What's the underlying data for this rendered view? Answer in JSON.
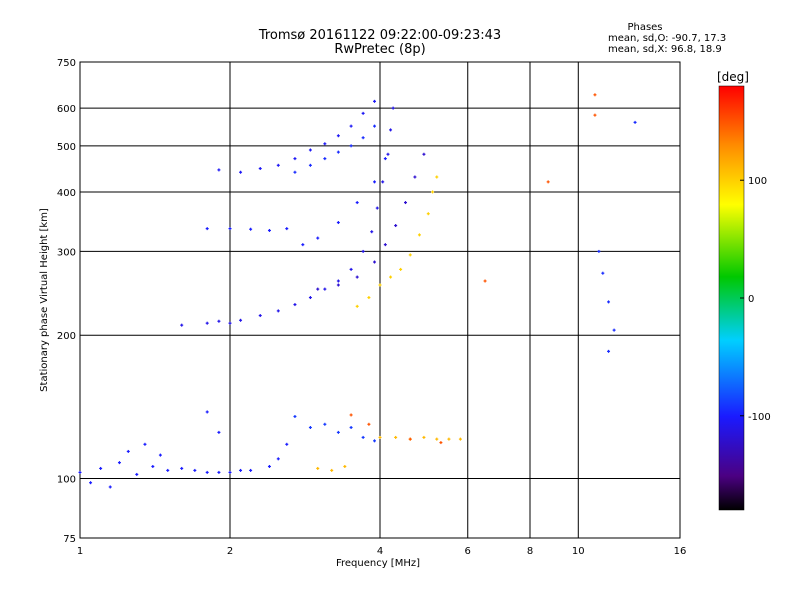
{
  "chart_data": {
    "type": "scatter",
    "title": "Tromsø 20161122 09:22:00-09:23:43",
    "subtitle": "RwPretec (8p)",
    "xlabel": "Frequency [MHz]",
    "ylabel": "Stationary phase Virtual Height [km]",
    "x_scale": "log",
    "y_scale": "log",
    "xlim": [
      1,
      16
    ],
    "ylim": [
      75,
      750
    ],
    "x_ticks": [
      1,
      2,
      4,
      6,
      8,
      10,
      16
    ],
    "y_ticks": [
      75,
      100,
      200,
      300,
      400,
      500,
      600,
      750
    ],
    "grid": true,
    "phase_stats": {
      "title": "Phases",
      "line_o": "mean, sd,O: -90.7, 17.3",
      "line_x": "mean, sd,X:  96.8, 18.9"
    },
    "colorbar": {
      "label": "[deg]",
      "range": [
        -180,
        180
      ],
      "ticks": [
        100,
        0,
        -100
      ],
      "tick_labels": [
        "100",
        "0",
        "-100"
      ]
    },
    "series": [
      {
        "phase": -100,
        "points": [
          [
            1.0,
            103
          ],
          [
            1.05,
            98
          ],
          [
            1.1,
            105
          ],
          [
            1.15,
            96
          ],
          [
            1.2,
            108
          ],
          [
            1.3,
            102
          ],
          [
            1.4,
            106
          ],
          [
            1.5,
            104
          ],
          [
            1.6,
            105
          ],
          [
            1.7,
            104
          ],
          [
            1.8,
            103
          ],
          [
            1.9,
            103
          ],
          [
            2.0,
            103
          ],
          [
            2.1,
            104
          ],
          [
            2.2,
            104
          ],
          [
            2.4,
            106
          ],
          [
            2.5,
            110
          ],
          [
            2.6,
            118
          ],
          [
            1.25,
            114
          ],
          [
            1.35,
            118
          ],
          [
            1.45,
            112
          ],
          [
            1.8,
            138
          ],
          [
            1.9,
            125
          ]
        ]
      },
      {
        "phase": -110,
        "points": [
          [
            1.6,
            210
          ],
          [
            1.8,
            212
          ],
          [
            1.9,
            214
          ],
          [
            2.0,
            212
          ],
          [
            2.1,
            215
          ],
          [
            2.3,
            220
          ],
          [
            2.5,
            225
          ],
          [
            2.7,
            232
          ],
          [
            2.9,
            240
          ],
          [
            3.1,
            250
          ],
          [
            3.3,
            260
          ],
          [
            3.5,
            275
          ],
          [
            3.7,
            300
          ],
          [
            3.85,
            330
          ],
          [
            3.95,
            370
          ],
          [
            4.05,
            420
          ],
          [
            4.15,
            480
          ],
          [
            4.2,
            540
          ],
          [
            4.25,
            600
          ]
        ]
      },
      {
        "phase": -100,
        "points": [
          [
            1.8,
            335
          ],
          [
            2.0,
            335
          ],
          [
            2.2,
            334
          ],
          [
            2.4,
            332
          ],
          [
            2.6,
            335
          ],
          [
            2.8,
            310
          ],
          [
            3.0,
            320
          ],
          [
            3.3,
            345
          ],
          [
            3.6,
            380
          ],
          [
            3.9,
            420
          ],
          [
            4.1,
            470
          ]
        ]
      },
      {
        "phase": -105,
        "points": [
          [
            1.9,
            445
          ],
          [
            2.1,
            440
          ],
          [
            2.3,
            448
          ],
          [
            2.5,
            455
          ],
          [
            2.7,
            470
          ],
          [
            2.9,
            490
          ],
          [
            3.1,
            505
          ],
          [
            3.3,
            525
          ],
          [
            3.5,
            550
          ],
          [
            3.7,
            585
          ],
          [
            3.9,
            620
          ]
        ]
      },
      {
        "phase": -95,
        "points": [
          [
            2.7,
            440
          ],
          [
            2.9,
            455
          ],
          [
            3.1,
            470
          ],
          [
            3.3,
            485
          ],
          [
            3.5,
            500
          ],
          [
            3.7,
            520
          ],
          [
            3.9,
            550
          ]
        ]
      },
      {
        "phase": -120,
        "points": [
          [
            3.0,
            250
          ],
          [
            3.3,
            255
          ],
          [
            3.6,
            265
          ],
          [
            3.9,
            285
          ],
          [
            4.1,
            310
          ],
          [
            4.3,
            340
          ],
          [
            4.5,
            380
          ],
          [
            4.7,
            430
          ],
          [
            4.9,
            480
          ]
        ]
      },
      {
        "phase": -90,
        "points": [
          [
            2.7,
            135
          ],
          [
            2.9,
            128
          ],
          [
            3.1,
            130
          ],
          [
            3.3,
            125
          ],
          [
            3.5,
            128
          ],
          [
            3.7,
            122
          ],
          [
            3.9,
            120
          ]
        ]
      },
      {
        "phase": 100,
        "points": [
          [
            3.6,
            230
          ],
          [
            3.8,
            240
          ],
          [
            4.0,
            255
          ],
          [
            4.2,
            265
          ],
          [
            4.4,
            275
          ],
          [
            4.6,
            295
          ],
          [
            4.8,
            325
          ],
          [
            5.0,
            360
          ],
          [
            5.1,
            400
          ],
          [
            5.2,
            430
          ]
        ]
      },
      {
        "phase": 110,
        "points": [
          [
            3.0,
            105
          ],
          [
            3.2,
            104
          ],
          [
            3.4,
            106
          ],
          [
            4.0,
            122
          ],
          [
            4.3,
            122
          ],
          [
            4.6,
            121
          ],
          [
            4.9,
            122
          ],
          [
            5.2,
            121
          ],
          [
            5.5,
            121
          ],
          [
            5.8,
            121
          ]
        ]
      },
      {
        "phase": 150,
        "points": [
          [
            3.5,
            136
          ],
          [
            3.8,
            130
          ],
          [
            4.6,
            121
          ],
          [
            5.3,
            119
          ],
          [
            6.5,
            260
          ],
          [
            8.7,
            420
          ],
          [
            10.8,
            640
          ],
          [
            10.8,
            580
          ]
        ]
      },
      {
        "phase": -95,
        "points": [
          [
            11.0,
            300
          ],
          [
            11.2,
            270
          ],
          [
            11.5,
            235
          ],
          [
            11.8,
            205
          ],
          [
            11.5,
            185
          ],
          [
            13.0,
            560
          ]
        ]
      }
    ]
  }
}
